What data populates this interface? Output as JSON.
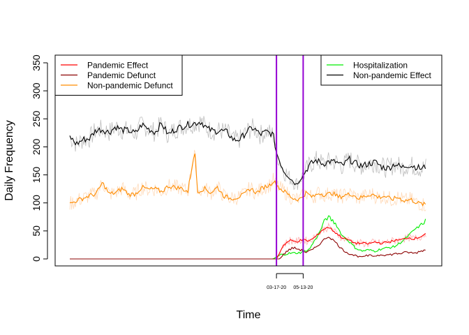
{
  "chart_data": {
    "type": "line",
    "xlabel": "Time",
    "ylabel": "Daily Frequency",
    "ylim": [
      0,
      350
    ],
    "yticks": [
      0,
      50,
      100,
      150,
      200,
      250,
      300,
      350
    ],
    "x_start_date": "2019-01-01",
    "x_end_date": "2021-01-31",
    "x_tick_labels": [
      {
        "date": "2020-03-17",
        "label": "03-17-20"
      },
      {
        "date": "2020-05-13",
        "label": "05-13-20"
      }
    ],
    "vertical_lines": [
      {
        "date": "2020-03-17",
        "color": "#9400d3"
      },
      {
        "date": "2020-05-13",
        "color": "#9400d3"
      }
    ],
    "grid": false,
    "legends": [
      {
        "position": "top-left",
        "entries": [
          {
            "label": "Pandemic Effect",
            "color": "#ff0000"
          },
          {
            "label": "Pandemic Defunct",
            "color": "#8b0000"
          },
          {
            "label": "Non-pandemic Defunct",
            "color": "#ff8c00"
          }
        ]
      },
      {
        "position": "top-right",
        "entries": [
          {
            "label": "Hospitalization",
            "color": "#00ee00"
          },
          {
            "label": "Non-pandemic Effect",
            "color": "#000000"
          }
        ]
      }
    ],
    "series": [
      {
        "name": "Non-pandemic Effect",
        "color": "#000000",
        "raw_color": "#bebebe",
        "points": [
          [
            "2019-01-01",
            218
          ],
          [
            "2019-01-15",
            205
          ],
          [
            "2019-01-29",
            213
          ],
          [
            "2019-02-12",
            215
          ],
          [
            "2019-02-26",
            230
          ],
          [
            "2019-03-12",
            231
          ],
          [
            "2019-03-26",
            226
          ],
          [
            "2019-04-09",
            236
          ],
          [
            "2019-04-23",
            230
          ],
          [
            "2019-05-07",
            229
          ],
          [
            "2019-05-21",
            224
          ],
          [
            "2019-06-04",
            240
          ],
          [
            "2019-06-18",
            232
          ],
          [
            "2019-07-02",
            226
          ],
          [
            "2019-07-16",
            242
          ],
          [
            "2019-07-30",
            222
          ],
          [
            "2019-08-13",
            231
          ],
          [
            "2019-08-27",
            236
          ],
          [
            "2019-09-10",
            240
          ],
          [
            "2019-09-24",
            242
          ],
          [
            "2019-10-08",
            245
          ],
          [
            "2019-10-22",
            232
          ],
          [
            "2019-11-05",
            228
          ],
          [
            "2019-11-19",
            229
          ],
          [
            "2019-12-03",
            226
          ],
          [
            "2019-12-17",
            212
          ],
          [
            "2019-12-31",
            214
          ],
          [
            "2020-01-14",
            228
          ],
          [
            "2020-01-28",
            234
          ],
          [
            "2020-02-11",
            222
          ],
          [
            "2020-02-25",
            227
          ],
          [
            "2020-03-10",
            222
          ],
          [
            "2020-03-17",
            190
          ],
          [
            "2020-03-31",
            160
          ],
          [
            "2020-04-14",
            145
          ],
          [
            "2020-04-28",
            133
          ],
          [
            "2020-05-13",
            150
          ],
          [
            "2020-05-27",
            168
          ],
          [
            "2020-06-10",
            176
          ],
          [
            "2020-06-24",
            170
          ],
          [
            "2020-07-08",
            174
          ],
          [
            "2020-07-22",
            173
          ],
          [
            "2020-08-05",
            166
          ],
          [
            "2020-08-19",
            178
          ],
          [
            "2020-09-02",
            170
          ],
          [
            "2020-09-16",
            166
          ],
          [
            "2020-09-30",
            170
          ],
          [
            "2020-10-14",
            173
          ],
          [
            "2020-10-28",
            164
          ],
          [
            "2020-11-11",
            162
          ],
          [
            "2020-11-25",
            170
          ],
          [
            "2020-12-09",
            163
          ],
          [
            "2020-12-23",
            168
          ],
          [
            "2021-01-06",
            165
          ],
          [
            "2021-01-20",
            161
          ],
          [
            "2021-01-31",
            165
          ]
        ]
      },
      {
        "name": "Non-pandemic Defunct",
        "color": "#ff8c00",
        "raw_color": "#ffdab9",
        "points": [
          [
            "2019-01-01",
            98
          ],
          [
            "2019-01-15",
            104
          ],
          [
            "2019-01-29",
            108
          ],
          [
            "2019-02-12",
            113
          ],
          [
            "2019-02-26",
            116
          ],
          [
            "2019-03-12",
            136
          ],
          [
            "2019-03-26",
            116
          ],
          [
            "2019-04-09",
            118
          ],
          [
            "2019-04-23",
            126
          ],
          [
            "2019-05-07",
            115
          ],
          [
            "2019-05-21",
            116
          ],
          [
            "2019-06-04",
            128
          ],
          [
            "2019-06-18",
            124
          ],
          [
            "2019-07-02",
            125
          ],
          [
            "2019-07-16",
            120
          ],
          [
            "2019-07-30",
            130
          ],
          [
            "2019-08-13",
            128
          ],
          [
            "2019-08-27",
            126
          ],
          [
            "2019-09-10",
            120
          ],
          [
            "2019-09-24",
            194
          ],
          [
            "2019-10-01",
            120
          ],
          [
            "2019-10-15",
            126
          ],
          [
            "2019-10-29",
            118
          ],
          [
            "2019-11-12",
            128
          ],
          [
            "2019-11-26",
            112
          ],
          [
            "2019-12-10",
            108
          ],
          [
            "2019-12-24",
            110
          ],
          [
            "2020-01-07",
            114
          ],
          [
            "2020-01-21",
            126
          ],
          [
            "2020-02-04",
            118
          ],
          [
            "2020-02-18",
            128
          ],
          [
            "2020-03-03",
            132
          ],
          [
            "2020-03-10",
            140
          ],
          [
            "2020-03-24",
            126
          ],
          [
            "2020-04-07",
            118
          ],
          [
            "2020-04-21",
            108
          ],
          [
            "2020-05-05",
            106
          ],
          [
            "2020-05-19",
            118
          ],
          [
            "2020-06-02",
            110
          ],
          [
            "2020-06-16",
            118
          ],
          [
            "2020-06-30",
            114
          ],
          [
            "2020-07-14",
            118
          ],
          [
            "2020-07-28",
            110
          ],
          [
            "2020-08-11",
            114
          ],
          [
            "2020-08-25",
            116
          ],
          [
            "2020-09-08",
            108
          ],
          [
            "2020-09-22",
            112
          ],
          [
            "2020-10-06",
            116
          ],
          [
            "2020-10-20",
            110
          ],
          [
            "2020-11-03",
            112
          ],
          [
            "2020-11-17",
            106
          ],
          [
            "2020-12-01",
            110
          ],
          [
            "2020-12-15",
            104
          ],
          [
            "2020-12-29",
            106
          ],
          [
            "2021-01-12",
            100
          ],
          [
            "2021-01-31",
            96
          ]
        ]
      },
      {
        "name": "Hospitalization",
        "color": "#00ee00",
        "raw_color": null,
        "points": [
          [
            "2019-01-01",
            0
          ],
          [
            "2020-03-10",
            0
          ],
          [
            "2020-03-24",
            7
          ],
          [
            "2020-04-14",
            10
          ],
          [
            "2020-05-05",
            11
          ],
          [
            "2020-05-26",
            17
          ],
          [
            "2020-06-16",
            46
          ],
          [
            "2020-06-30",
            72
          ],
          [
            "2020-07-07",
            74
          ],
          [
            "2020-07-21",
            63
          ],
          [
            "2020-08-04",
            42
          ],
          [
            "2020-08-18",
            32
          ],
          [
            "2020-09-01",
            20
          ],
          [
            "2020-09-15",
            14
          ],
          [
            "2020-09-29",
            16
          ],
          [
            "2020-10-13",
            14
          ],
          [
            "2020-10-27",
            18
          ],
          [
            "2020-11-10",
            20
          ],
          [
            "2020-11-24",
            22
          ],
          [
            "2020-12-08",
            30
          ],
          [
            "2020-12-22",
            40
          ],
          [
            "2021-01-05",
            52
          ],
          [
            "2021-01-19",
            60
          ],
          [
            "2021-01-31",
            70
          ]
        ]
      },
      {
        "name": "Pandemic Effect",
        "color": "#ff0000",
        "raw_color": "#ffb0b0",
        "points": [
          [
            "2019-01-01",
            0
          ],
          [
            "2020-03-17",
            0
          ],
          [
            "2020-03-31",
            24
          ],
          [
            "2020-04-14",
            33
          ],
          [
            "2020-04-28",
            31
          ],
          [
            "2020-05-12",
            34
          ],
          [
            "2020-05-26",
            32
          ],
          [
            "2020-06-09",
            40
          ],
          [
            "2020-06-23",
            52
          ],
          [
            "2020-07-07",
            57
          ],
          [
            "2020-07-21",
            47
          ],
          [
            "2020-08-04",
            38
          ],
          [
            "2020-08-18",
            34
          ],
          [
            "2020-09-01",
            28
          ],
          [
            "2020-09-15",
            28
          ],
          [
            "2020-09-29",
            27
          ],
          [
            "2020-10-13",
            30
          ],
          [
            "2020-10-27",
            28
          ],
          [
            "2020-11-10",
            30
          ],
          [
            "2020-11-24",
            33
          ],
          [
            "2020-12-08",
            34
          ],
          [
            "2020-12-22",
            38
          ],
          [
            "2021-01-05",
            36
          ],
          [
            "2021-01-19",
            40
          ],
          [
            "2021-01-31",
            46
          ]
        ]
      },
      {
        "name": "Pandemic Defunct",
        "color": "#8b0000",
        "raw_color": null,
        "points": [
          [
            "2019-01-01",
            0
          ],
          [
            "2020-03-24",
            0
          ],
          [
            "2020-04-07",
            13
          ],
          [
            "2020-04-21",
            20
          ],
          [
            "2020-05-05",
            17
          ],
          [
            "2020-05-19",
            12
          ],
          [
            "2020-06-02",
            16
          ],
          [
            "2020-06-16",
            26
          ],
          [
            "2020-06-30",
            37
          ],
          [
            "2020-07-07",
            40
          ],
          [
            "2020-07-21",
            30
          ],
          [
            "2020-08-04",
            17
          ],
          [
            "2020-08-18",
            10
          ],
          [
            "2020-09-01",
            6
          ],
          [
            "2020-09-15",
            4
          ],
          [
            "2020-09-29",
            6
          ],
          [
            "2020-10-13",
            5
          ],
          [
            "2020-10-27",
            8
          ],
          [
            "2020-11-10",
            7
          ],
          [
            "2020-11-24",
            9
          ],
          [
            "2020-12-08",
            10
          ],
          [
            "2020-12-22",
            12
          ],
          [
            "2021-01-05",
            10
          ],
          [
            "2021-01-19",
            14
          ],
          [
            "2021-01-31",
            17
          ]
        ]
      }
    ]
  }
}
